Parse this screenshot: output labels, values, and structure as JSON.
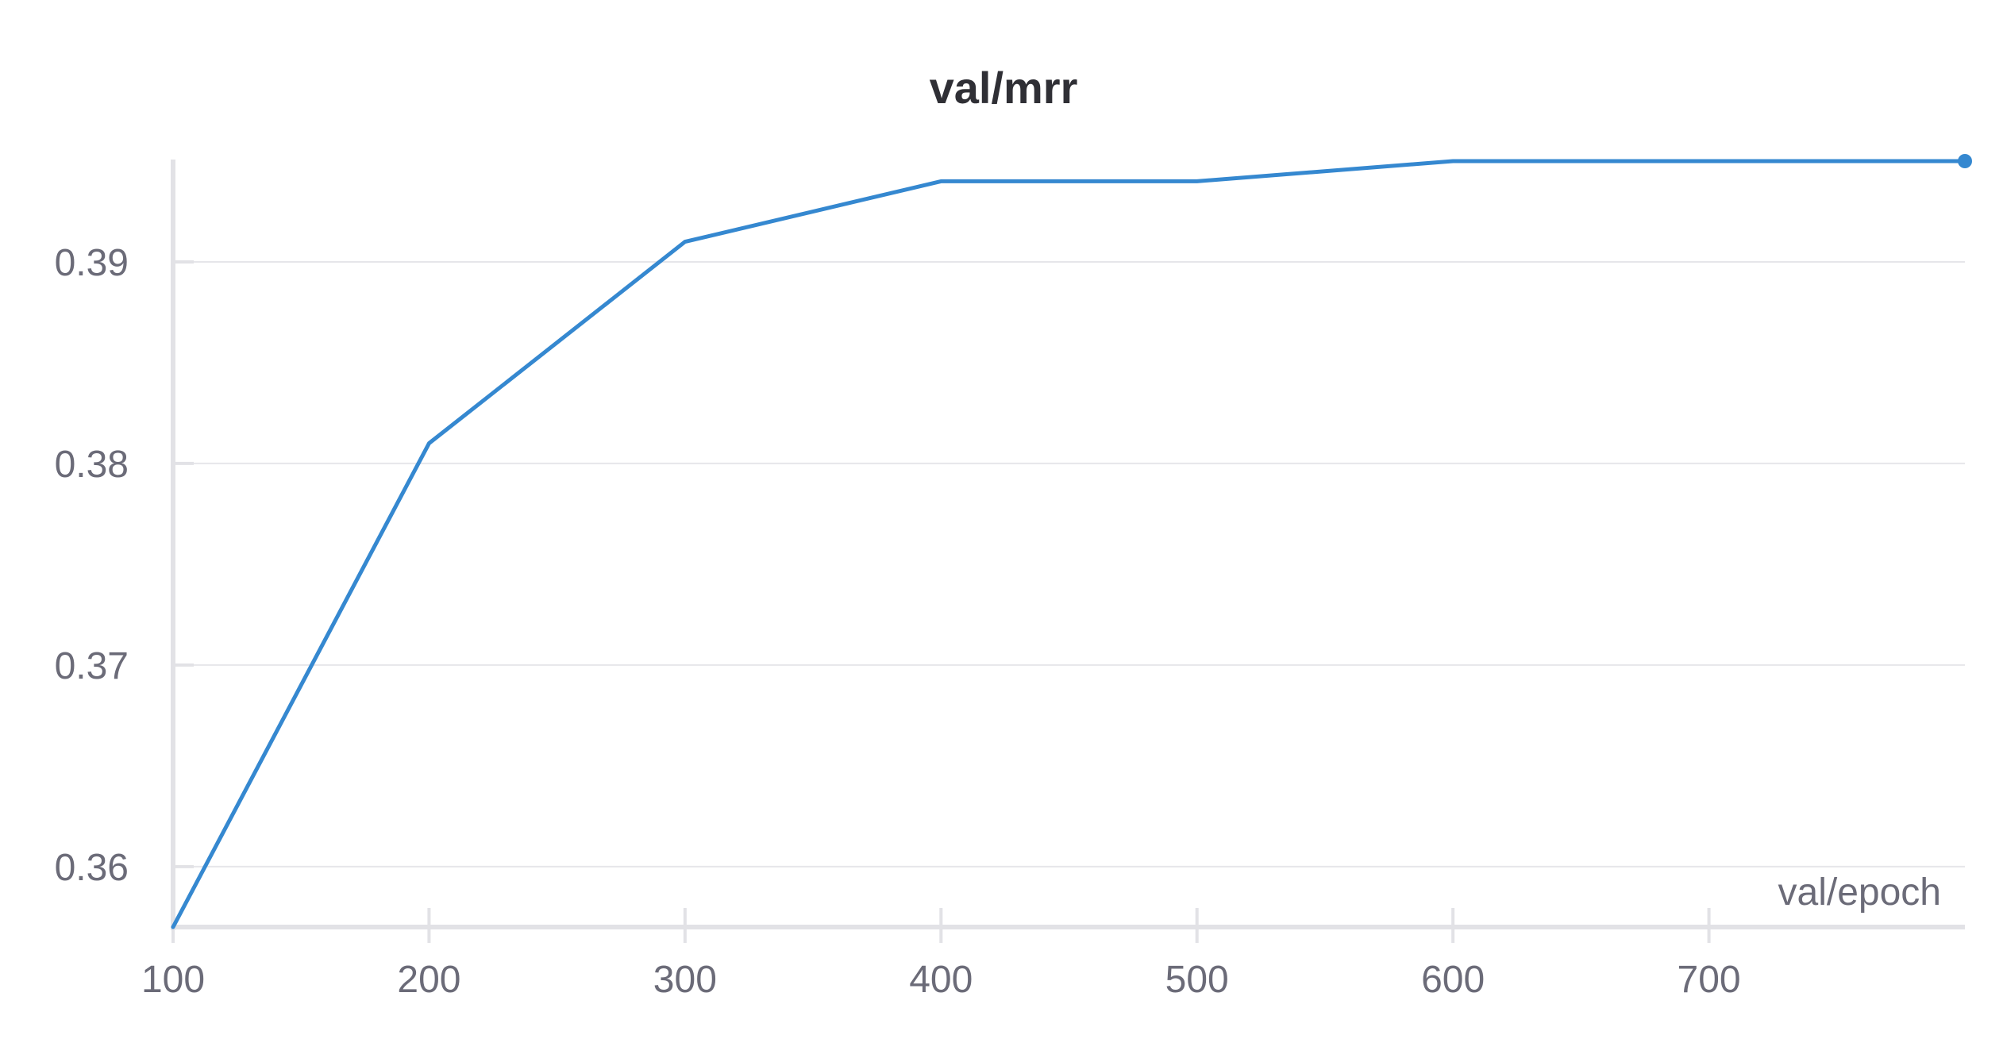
{
  "chart_data": {
    "type": "line",
    "title": "val/mrr",
    "xlabel": "val/epoch",
    "ylabel": "",
    "x": [
      100,
      200,
      300,
      400,
      500,
      600,
      700,
      800
    ],
    "series": [
      {
        "values": [
          0.357,
          0.381,
          0.391,
          0.394,
          0.394,
          0.395,
          0.395,
          0.395
        ],
        "color": "#3588d0"
      }
    ],
    "x_ticks": [
      100,
      200,
      300,
      400,
      500,
      600,
      700
    ],
    "x_tick_labels": [
      "100",
      "200",
      "300",
      "400",
      "500",
      "600",
      "700"
    ],
    "y_ticks": [
      0.36,
      0.37,
      0.38,
      0.39
    ],
    "y_tick_labels": [
      "0.36",
      "0.37",
      "0.38",
      "0.39"
    ],
    "xlim": [
      100,
      800
    ],
    "ylim": [
      0.357,
      0.395
    ],
    "grid": "horizontal",
    "legend": "none"
  }
}
